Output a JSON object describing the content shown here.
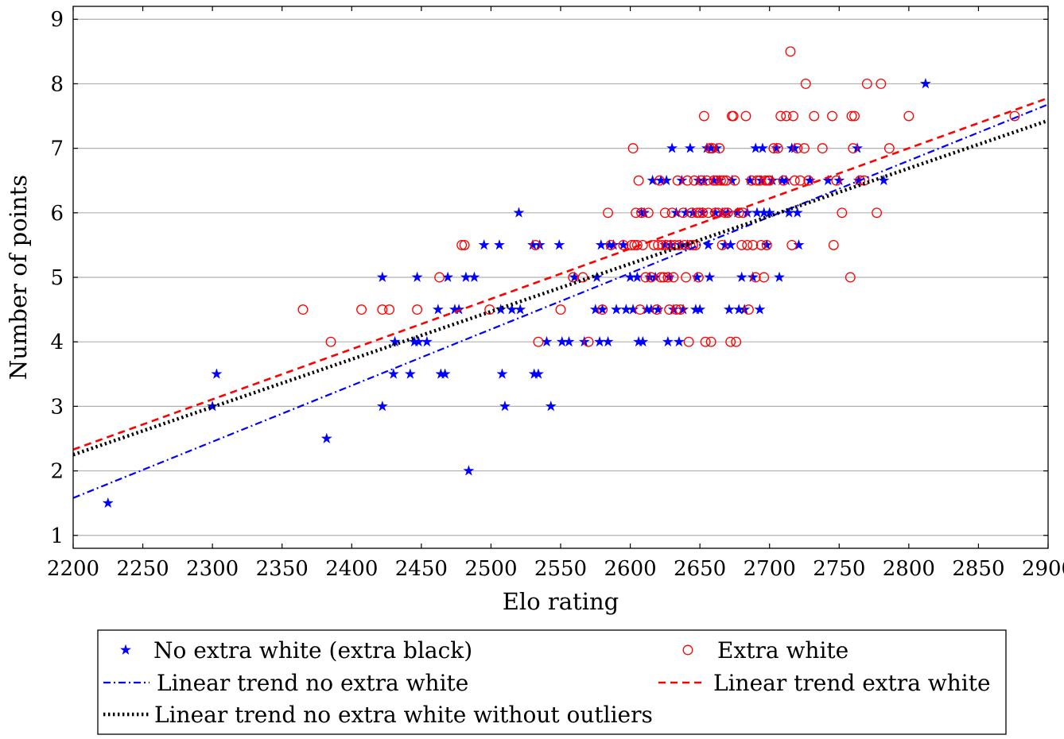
{
  "chart_data": {
    "type": "scatter",
    "title": "",
    "xlabel": "Elo rating",
    "ylabel": "Number of points",
    "xlim": [
      2200,
      2900
    ],
    "ylim": [
      0.8,
      9.2
    ],
    "xticks": [
      2200,
      2250,
      2300,
      2350,
      2400,
      2450,
      2500,
      2550,
      2600,
      2650,
      2700,
      2750,
      2800,
      2850,
      2900
    ],
    "xtick_labels": [
      "2200",
      "2250",
      "2300",
      "2350",
      "2400",
      "2450",
      "2500",
      "2550",
      "2600",
      "2650",
      "2700",
      "2750",
      "2800",
      "2850",
      "2900"
    ],
    "yticks": [
      1,
      2,
      3,
      4,
      5,
      6,
      7,
      8,
      9
    ],
    "ytick_labels": [
      "1",
      "2",
      "3",
      "4",
      "5",
      "6",
      "7",
      "8",
      "9"
    ],
    "grid": "horizontal",
    "legend_position": "below",
    "colors": {
      "no_extra_white": "#0000ff",
      "extra_white": "#ff0000",
      "trend_no_outliers": "#000000"
    },
    "series": [
      {
        "name": "No extra white (extra black)",
        "marker": "star",
        "color": "#0000ff",
        "points": [
          [
            2225,
            1.5
          ],
          [
            2300,
            3
          ],
          [
            2303,
            3.5
          ],
          [
            2382,
            2.5
          ],
          [
            2422,
            5
          ],
          [
            2422,
            3
          ],
          [
            2430,
            3.5
          ],
          [
            2431,
            4
          ],
          [
            2442,
            3.5
          ],
          [
            2445,
            4
          ],
          [
            2447,
            5
          ],
          [
            2448,
            4
          ],
          [
            2454,
            4
          ],
          [
            2462,
            4.5
          ],
          [
            2464,
            3.5
          ],
          [
            2467,
            3.5
          ],
          [
            2469,
            5
          ],
          [
            2474,
            4.5
          ],
          [
            2477,
            4.5
          ],
          [
            2482,
            5
          ],
          [
            2484,
            2
          ],
          [
            2488,
            5
          ],
          [
            2495,
            5.5
          ],
          [
            2506,
            5.5
          ],
          [
            2507,
            4.5
          ],
          [
            2508,
            3.5
          ],
          [
            2510,
            3
          ],
          [
            2515,
            4.5
          ],
          [
            2520,
            6
          ],
          [
            2521,
            4.5
          ],
          [
            2530,
            5.5
          ],
          [
            2531,
            3.5
          ],
          [
            2534,
            3.5
          ],
          [
            2535,
            5.5
          ],
          [
            2540,
            4
          ],
          [
            2543,
            3
          ],
          [
            2549,
            5.5
          ],
          [
            2551,
            4
          ],
          [
            2556,
            4
          ],
          [
            2560,
            5
          ],
          [
            2567,
            4
          ],
          [
            2575,
            4.5
          ],
          [
            2576,
            5
          ],
          [
            2578,
            4
          ],
          [
            2579,
            5.5
          ],
          [
            2580,
            4.5
          ],
          [
            2584,
            4
          ],
          [
            2585,
            5.5
          ],
          [
            2588,
            5.5
          ],
          [
            2590,
            4.5
          ],
          [
            2595,
            5.5
          ],
          [
            2597,
            4.5
          ],
          [
            2600,
            5
          ],
          [
            2602,
            4.5
          ],
          [
            2605,
            5
          ],
          [
            2606,
            4
          ],
          [
            2608,
            6
          ],
          [
            2609,
            4
          ],
          [
            2610,
            6
          ],
          [
            2612,
            4.5
          ],
          [
            2614,
            5
          ],
          [
            2615,
            4.5
          ],
          [
            2616,
            6.5
          ],
          [
            2618,
            5
          ],
          [
            2620,
            4.5
          ],
          [
            2622,
            6.5
          ],
          [
            2625,
            5.5
          ],
          [
            2626,
            6.5
          ],
          [
            2627,
            4
          ],
          [
            2628,
            5
          ],
          [
            2629,
            5.5
          ],
          [
            2630,
            7
          ],
          [
            2631,
            4.5
          ],
          [
            2633,
            6
          ],
          [
            2635,
            4
          ],
          [
            2636,
            5.5
          ],
          [
            2637,
            6.5
          ],
          [
            2638,
            4.5
          ],
          [
            2640,
            6
          ],
          [
            2641,
            5.5
          ],
          [
            2643,
            7
          ],
          [
            2645,
            6
          ],
          [
            2647,
            4.5
          ],
          [
            2648,
            5
          ],
          [
            2649,
            6.5
          ],
          [
            2650,
            4.5
          ],
          [
            2652,
            6
          ],
          [
            2653,
            6.5
          ],
          [
            2655,
            7
          ],
          [
            2656,
            5.5
          ],
          [
            2657,
            5
          ],
          [
            2658,
            7
          ],
          [
            2660,
            6.5
          ],
          [
            2661,
            6
          ],
          [
            2662,
            7
          ],
          [
            2664,
            6.5
          ],
          [
            2666,
            6
          ],
          [
            2668,
            5.5
          ],
          [
            2670,
            6
          ],
          [
            2671,
            4.5
          ],
          [
            2672,
            5.5
          ],
          [
            2673,
            6.5
          ],
          [
            2677,
            6
          ],
          [
            2678,
            4.5
          ],
          [
            2680,
            5
          ],
          [
            2682,
            4.5
          ],
          [
            2684,
            6
          ],
          [
            2686,
            6.5
          ],
          [
            2688,
            5
          ],
          [
            2690,
            7
          ],
          [
            2691,
            6
          ],
          [
            2693,
            4.5
          ],
          [
            2694,
            6.5
          ],
          [
            2695,
            7
          ],
          [
            2696,
            6
          ],
          [
            2698,
            5.5
          ],
          [
            2700,
            6
          ],
          [
            2702,
            6.5
          ],
          [
            2705,
            7
          ],
          [
            2707,
            5
          ],
          [
            2709,
            6.5
          ],
          [
            2712,
            6.5
          ],
          [
            2714,
            6
          ],
          [
            2716,
            7
          ],
          [
            2718,
            7
          ],
          [
            2720,
            6
          ],
          [
            2721,
            5.5
          ],
          [
            2729,
            6.5
          ],
          [
            2742,
            6.5
          ],
          [
            2750,
            6.5
          ],
          [
            2763,
            7
          ],
          [
            2764,
            6.5
          ],
          [
            2782,
            6.5
          ],
          [
            2812,
            8
          ]
        ]
      },
      {
        "name": "Extra white",
        "marker": "circle",
        "color": "#ff0000",
        "points": [
          [
            2365,
            4.5
          ],
          [
            2385,
            4
          ],
          [
            2407,
            4.5
          ],
          [
            2422,
            4.5
          ],
          [
            2427,
            4.5
          ],
          [
            2447,
            4.5
          ],
          [
            2463,
            5
          ],
          [
            2479,
            5.5
          ],
          [
            2481,
            5.5
          ],
          [
            2499,
            4.5
          ],
          [
            2532,
            5.5
          ],
          [
            2534,
            4
          ],
          [
            2550,
            4.5
          ],
          [
            2559,
            5
          ],
          [
            2566,
            5
          ],
          [
            2570,
            4
          ],
          [
            2580,
            4.5
          ],
          [
            2584,
            6
          ],
          [
            2586,
            5.5
          ],
          [
            2595,
            5.5
          ],
          [
            2601,
            5.5
          ],
          [
            2602,
            7
          ],
          [
            2603,
            5.5
          ],
          [
            2604,
            6
          ],
          [
            2605,
            5.5
          ],
          [
            2606,
            6.5
          ],
          [
            2607,
            4.5
          ],
          [
            2608,
            6
          ],
          [
            2609,
            5.5
          ],
          [
            2611,
            5
          ],
          [
            2613,
            6
          ],
          [
            2615,
            5
          ],
          [
            2617,
            5.5
          ],
          [
            2619,
            4.5
          ],
          [
            2620,
            5.5
          ],
          [
            2621,
            6.5
          ],
          [
            2622,
            5
          ],
          [
            2623,
            5.5
          ],
          [
            2624,
            5
          ],
          [
            2625,
            6
          ],
          [
            2626,
            5.5
          ],
          [
            2627,
            5
          ],
          [
            2628,
            4.5
          ],
          [
            2629,
            5.5
          ],
          [
            2630,
            6
          ],
          [
            2631,
            5
          ],
          [
            2632,
            5.5
          ],
          [
            2633,
            4.5
          ],
          [
            2634,
            6.5
          ],
          [
            2635,
            5.5
          ],
          [
            2636,
            4.5
          ],
          [
            2638,
            6
          ],
          [
            2639,
            5.5
          ],
          [
            2640,
            5
          ],
          [
            2641,
            6.5
          ],
          [
            2642,
            4
          ],
          [
            2643,
            5.5
          ],
          [
            2644,
            6
          ],
          [
            2645,
            5.5
          ],
          [
            2646,
            6.5
          ],
          [
            2647,
            5.5
          ],
          [
            2648,
            6
          ],
          [
            2649,
            5
          ],
          [
            2650,
            6
          ],
          [
            2651,
            6.5
          ],
          [
            2652,
            6
          ],
          [
            2653,
            7.5
          ],
          [
            2654,
            4
          ],
          [
            2655,
            6.5
          ],
          [
            2656,
            6
          ],
          [
            2657,
            7
          ],
          [
            2658,
            4
          ],
          [
            2659,
            7
          ],
          [
            2660,
            6.5
          ],
          [
            2661,
            6
          ],
          [
            2662,
            6.5
          ],
          [
            2663,
            6
          ],
          [
            2664,
            7
          ],
          [
            2665,
            6.5
          ],
          [
            2666,
            5.5
          ],
          [
            2667,
            6.5
          ],
          [
            2668,
            6
          ],
          [
            2669,
            6.5
          ],
          [
            2670,
            6
          ],
          [
            2672,
            4
          ],
          [
            2673,
            7.5
          ],
          [
            2674,
            7.5
          ],
          [
            2675,
            6.5
          ],
          [
            2676,
            4
          ],
          [
            2678,
            6
          ],
          [
            2680,
            5.5
          ],
          [
            2681,
            6
          ],
          [
            2683,
            7.5
          ],
          [
            2684,
            5.5
          ],
          [
            2685,
            4.5
          ],
          [
            2687,
            6.5
          ],
          [
            2688,
            5.5
          ],
          [
            2690,
            5
          ],
          [
            2691,
            6.5
          ],
          [
            2693,
            6.5
          ],
          [
            2694,
            5.5
          ],
          [
            2696,
            5
          ],
          [
            2697,
            6.5
          ],
          [
            2698,
            5.5
          ],
          [
            2699,
            6.5
          ],
          [
            2700,
            6.5
          ],
          [
            2703,
            7
          ],
          [
            2706,
            7
          ],
          [
            2708,
            7.5
          ],
          [
            2710,
            6.5
          ],
          [
            2712,
            7.5
          ],
          [
            2715,
            8.5
          ],
          [
            2716,
            5.5
          ],
          [
            2717,
            7.5
          ],
          [
            2718,
            6.5
          ],
          [
            2720,
            7
          ],
          [
            2722,
            6.5
          ],
          [
            2725,
            7
          ],
          [
            2726,
            8
          ],
          [
            2728,
            6.5
          ],
          [
            2732,
            7.5
          ],
          [
            2738,
            7
          ],
          [
            2745,
            7.5
          ],
          [
            2746,
            5.5
          ],
          [
            2748,
            6.5
          ],
          [
            2752,
            6
          ],
          [
            2758,
            5
          ],
          [
            2759,
            7.5
          ],
          [
            2760,
            7
          ],
          [
            2761,
            7.5
          ],
          [
            2765,
            6.5
          ],
          [
            2768,
            6.5
          ],
          [
            2770,
            8
          ],
          [
            2777,
            6
          ],
          [
            2780,
            8
          ],
          [
            2786,
            7
          ],
          [
            2800,
            7.5
          ],
          [
            2876,
            7.5
          ]
        ]
      },
      {
        "name": "Linear trend no extra white",
        "type": "line",
        "style": "dashdot",
        "color": "#0000ff",
        "x": [
          2200,
          2900
        ],
        "y": [
          1.58,
          7.68
        ]
      },
      {
        "name": "Linear trend extra white",
        "type": "line",
        "style": "dashed",
        "color": "#ff0000",
        "x": [
          2200,
          2900
        ],
        "y": [
          2.33,
          7.78
        ]
      },
      {
        "name": "Linear trend no extra white without outliers",
        "type": "line",
        "style": "dotted",
        "color": "#000000",
        "x": [
          2200,
          2900
        ],
        "y": [
          2.25,
          7.43
        ]
      }
    ],
    "legend": [
      {
        "label": "No extra white (extra black)",
        "symbol": "star",
        "color": "#0000ff"
      },
      {
        "label": "Extra white",
        "symbol": "circle",
        "color": "#ff0000"
      },
      {
        "label": "Linear trend no extra white",
        "symbol": "dashdot",
        "color": "#0000ff"
      },
      {
        "label": "Linear trend extra white",
        "symbol": "dashed",
        "color": "#ff0000"
      },
      {
        "label": "Linear trend no extra white without outliers",
        "symbol": "dotted",
        "color": "#000000"
      }
    ]
  }
}
